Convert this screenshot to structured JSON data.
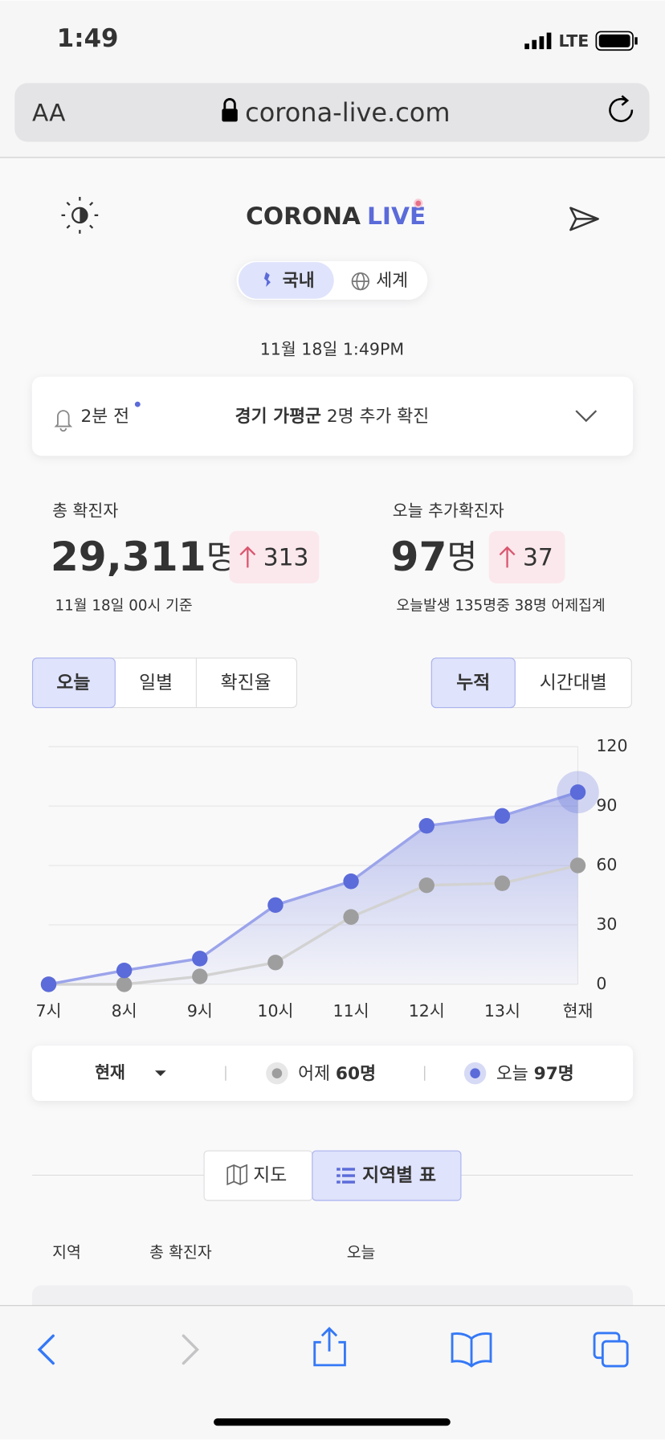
{
  "status_bar": {
    "time": "1:49",
    "network": "LTE"
  },
  "browser": {
    "text_size": "AA",
    "url": "corona-live.com"
  },
  "header": {
    "logo_main": "CORONA",
    "logo_accent": "LIVE",
    "tabs": [
      "국내",
      "세계"
    ]
  },
  "updated": "11월 18일 1:49PM",
  "notice": {
    "time": "2분 전",
    "region": "경기 가평군",
    "text": "2명 추가 확진"
  },
  "stats": [
    {
      "label": "총 확진자",
      "value": "29,311",
      "unit": "명",
      "delta": "313",
      "note": "11월 18일 00시 기준"
    },
    {
      "label": "오늘 추가확진자",
      "value": "97",
      "unit": "명",
      "delta": "37",
      "note": "오늘발생 135명중 38명 어제집계"
    }
  ],
  "view_tabs": [
    "오늘",
    "일별",
    "확진율"
  ],
  "mode_tabs": [
    "누적",
    "시간대별"
  ],
  "chart_data": {
    "type": "line",
    "categories": [
      "7시",
      "8시",
      "9시",
      "10시",
      "11시",
      "12시",
      "13시",
      "현재"
    ],
    "series": [
      {
        "name": "어제",
        "color": "#9e9e9e",
        "line_color": "#d2d2d2",
        "values": [
          0,
          0,
          4,
          11,
          34,
          50,
          51,
          60
        ],
        "legend_value": "60명"
      },
      {
        "name": "오늘",
        "color": "#5b6bd9",
        "line_color": "#9ba4ea",
        "values": [
          0,
          7,
          13,
          40,
          52,
          80,
          85,
          97
        ],
        "legend_value": "97명"
      }
    ],
    "ylim": [
      0,
      120
    ],
    "yticks": [
      0,
      30,
      60,
      90,
      120
    ],
    "grid": true,
    "y_axis_side": "right",
    "selector": "현재"
  },
  "section_tabs": [
    "지도",
    "지역별 표"
  ],
  "table": {
    "headers": [
      "지역",
      "총 확진자",
      "오늘"
    ]
  }
}
